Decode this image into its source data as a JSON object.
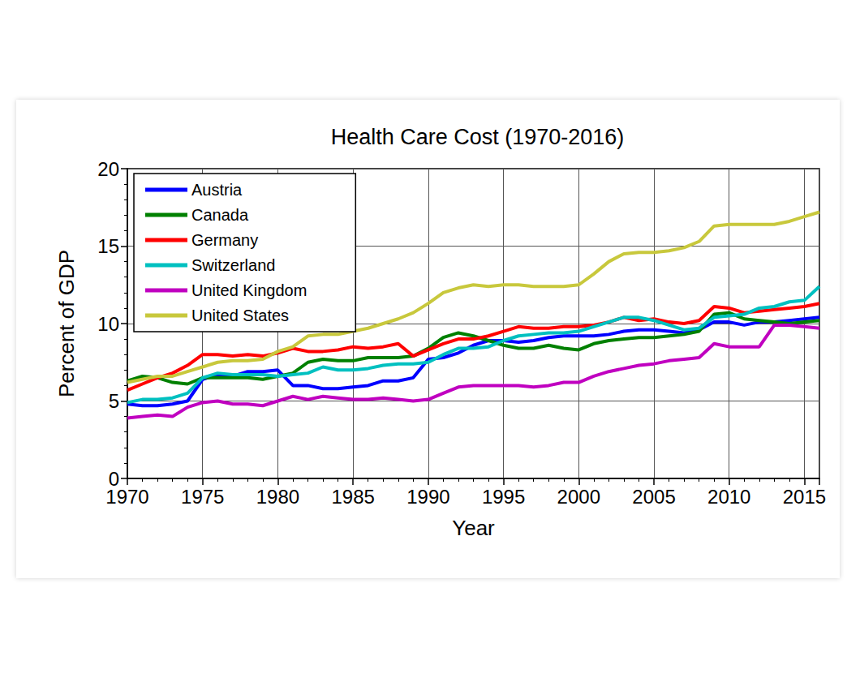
{
  "chart_data": {
    "type": "line",
    "title": "Health Care Cost (1970-2016)",
    "x_label": "Year",
    "y_label": "Percent of GDP",
    "x": [
      1970,
      1971,
      1972,
      1973,
      1974,
      1975,
      1976,
      1977,
      1978,
      1979,
      1980,
      1981,
      1982,
      1983,
      1984,
      1985,
      1986,
      1987,
      1988,
      1989,
      1990,
      1991,
      1992,
      1993,
      1994,
      1995,
      1996,
      1997,
      1998,
      1999,
      2000,
      2001,
      2002,
      2003,
      2004,
      2005,
      2006,
      2007,
      2008,
      2009,
      2010,
      2011,
      2012,
      2013,
      2014,
      2015,
      2016
    ],
    "series": [
      {
        "name": "Austria",
        "color": "#0000ff",
        "values": [
          4.8,
          4.7,
          4.7,
          4.8,
          5.0,
          6.4,
          6.7,
          6.6,
          6.9,
          6.9,
          7.0,
          6.0,
          6.0,
          5.8,
          5.8,
          5.9,
          6.0,
          6.3,
          6.3,
          6.5,
          7.7,
          7.8,
          8.1,
          8.6,
          8.9,
          8.9,
          8.8,
          8.9,
          9.1,
          9.2,
          9.2,
          9.2,
          9.3,
          9.5,
          9.6,
          9.6,
          9.5,
          9.4,
          9.6,
          10.1,
          10.1,
          9.9,
          10.1,
          10.1,
          10.2,
          10.3,
          10.4
        ]
      },
      {
        "name": "Canada",
        "color": "#008000",
        "values": [
          6.3,
          6.6,
          6.5,
          6.2,
          6.1,
          6.5,
          6.5,
          6.5,
          6.5,
          6.4,
          6.6,
          6.8,
          7.5,
          7.7,
          7.6,
          7.6,
          7.8,
          7.8,
          7.8,
          7.9,
          8.4,
          9.1,
          9.4,
          9.2,
          8.9,
          8.6,
          8.4,
          8.4,
          8.6,
          8.4,
          8.3,
          8.7,
          8.9,
          9.0,
          9.1,
          9.1,
          9.2,
          9.3,
          9.5,
          10.6,
          10.7,
          10.3,
          10.2,
          10.1,
          10.0,
          10.1,
          10.2
        ]
      },
      {
        "name": "Germany",
        "color": "#ff0000",
        "values": [
          5.7,
          6.1,
          6.5,
          6.8,
          7.3,
          8.0,
          8.0,
          7.9,
          8.0,
          7.9,
          8.1,
          8.4,
          8.2,
          8.2,
          8.3,
          8.5,
          8.4,
          8.5,
          8.7,
          7.9,
          8.3,
          8.7,
          9.0,
          9.0,
          9.2,
          9.5,
          9.8,
          9.7,
          9.7,
          9.8,
          9.8,
          9.9,
          10.1,
          10.4,
          10.2,
          10.3,
          10.1,
          10.0,
          10.2,
          11.1,
          11.0,
          10.7,
          10.8,
          10.9,
          11.0,
          11.1,
          11.3
        ]
      },
      {
        "name": "Switzerland",
        "color": "#00c0c0",
        "values": [
          4.9,
          5.1,
          5.1,
          5.2,
          5.5,
          6.5,
          6.8,
          6.7,
          6.7,
          6.7,
          6.6,
          6.7,
          6.8,
          7.2,
          7.0,
          7.0,
          7.1,
          7.3,
          7.4,
          7.4,
          7.5,
          8.0,
          8.4,
          8.4,
          8.5,
          8.9,
          9.2,
          9.3,
          9.4,
          9.4,
          9.5,
          9.8,
          10.1,
          10.4,
          10.4,
          10.2,
          9.9,
          9.6,
          9.7,
          10.4,
          10.5,
          10.6,
          11.0,
          11.1,
          11.4,
          11.5,
          12.4
        ]
      },
      {
        "name": "United Kingdom",
        "color": "#c000c0",
        "values": [
          3.9,
          4.0,
          4.1,
          4.0,
          4.6,
          4.9,
          5.0,
          4.8,
          4.8,
          4.7,
          5.0,
          5.3,
          5.1,
          5.3,
          5.2,
          5.1,
          5.1,
          5.2,
          5.1,
          5.0,
          5.1,
          5.5,
          5.9,
          6.0,
          6.0,
          6.0,
          6.0,
          5.9,
          6.0,
          6.2,
          6.2,
          6.6,
          6.9,
          7.1,
          7.3,
          7.4,
          7.6,
          7.7,
          7.8,
          8.7,
          8.5,
          8.5,
          8.5,
          9.9,
          9.9,
          9.8,
          9.7
        ]
      },
      {
        "name": "United States",
        "color": "#c8c83c",
        "values": [
          6.2,
          6.4,
          6.6,
          6.6,
          6.9,
          7.2,
          7.5,
          7.6,
          7.6,
          7.7,
          8.2,
          8.5,
          9.2,
          9.3,
          9.3,
          9.5,
          9.7,
          10.0,
          10.3,
          10.7,
          11.3,
          12.0,
          12.3,
          12.5,
          12.4,
          12.5,
          12.5,
          12.4,
          12.4,
          12.4,
          12.5,
          13.2,
          14.0,
          14.5,
          14.6,
          14.6,
          14.7,
          14.9,
          15.3,
          16.3,
          16.4,
          16.4,
          16.4,
          16.4,
          16.6,
          16.9,
          17.2
        ]
      }
    ],
    "xlim": [
      1970,
      2016
    ],
    "xticks": [
      1970,
      1975,
      1980,
      1985,
      1990,
      1995,
      2000,
      2005,
      2010,
      2015
    ],
    "ylim": [
      0,
      20
    ],
    "yticks": [
      0,
      5,
      10,
      15,
      20
    ],
    "grid": true,
    "legend": "upper left"
  }
}
